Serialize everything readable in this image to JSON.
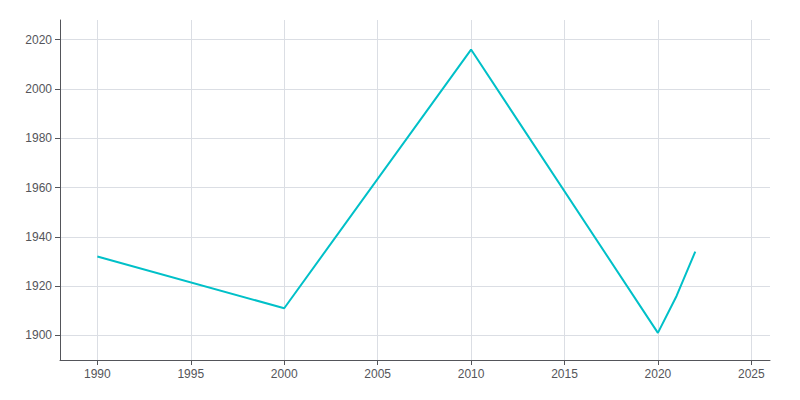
{
  "chart_data": {
    "type": "line",
    "x": [
      1990,
      2000,
      2010,
      2020,
      2021,
      2022
    ],
    "values": [
      1932,
      1911,
      2016,
      1901,
      1916,
      1934
    ],
    "color": "#00c0c8",
    "xlim": [
      1988,
      2026
    ],
    "ylim": [
      1890,
      2028
    ],
    "xticks": [
      1990,
      1995,
      2000,
      2005,
      2010,
      2015,
      2020,
      2025
    ],
    "yticks": [
      1900,
      1920,
      1940,
      1960,
      1980,
      2000,
      2020
    ],
    "grid": true
  }
}
